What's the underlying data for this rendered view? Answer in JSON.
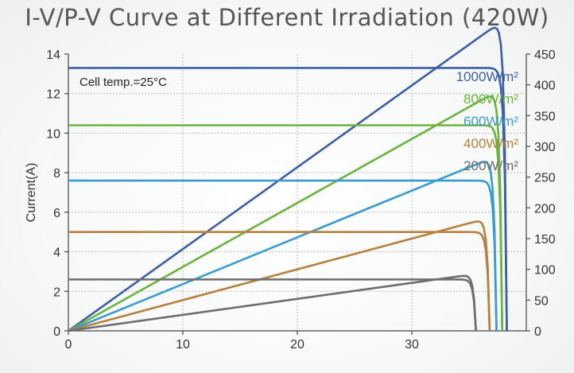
{
  "chart_data": {
    "type": "line",
    "title": "I-V/P-V Curve at Different Irradiation (420W)",
    "ylabel": "Current(A)",
    "y2label": "",
    "xlabel": "",
    "xlim": [
      0,
      40
    ],
    "ylim": [
      0,
      14
    ],
    "y2lim": [
      0,
      450
    ],
    "x_ticks": [
      "0",
      "10",
      "20",
      "30"
    ],
    "y_ticks": [
      "0",
      "2",
      "4",
      "6",
      "8",
      "10",
      "12",
      "14"
    ],
    "y2_ticks": [
      "0",
      "50",
      "100",
      "150",
      "200",
      "250",
      "300",
      "350",
      "400",
      "450"
    ],
    "annotation": "Cell temp.=25°C",
    "grid": true,
    "legend_position": "top-right",
    "series": [
      {
        "name": "1000W/m²",
        "color": "#3d5ea6",
        "isc": 13.3,
        "voc": 38.3,
        "vmp": 31.2,
        "pmax": 423
      },
      {
        "name": "800W/m²",
        "color": "#6ab43e",
        "isc": 10.4,
        "voc": 37.9,
        "vmp": 31.0,
        "pmax": 330
      },
      {
        "name": "600W/m²",
        "color": "#3a9bd2",
        "isc": 7.6,
        "voc": 37.4,
        "vmp": 31.0,
        "pmax": 247
      },
      {
        "name": "400W/m²",
        "color": "#b7803e",
        "isc": 5.0,
        "voc": 36.8,
        "vmp": 30.4,
        "pmax": 162
      },
      {
        "name": "200W/m²",
        "color": "#6d6d6d",
        "isc": 2.6,
        "voc": 35.6,
        "vmp": 29.5,
        "pmax": 83
      }
    ]
  }
}
